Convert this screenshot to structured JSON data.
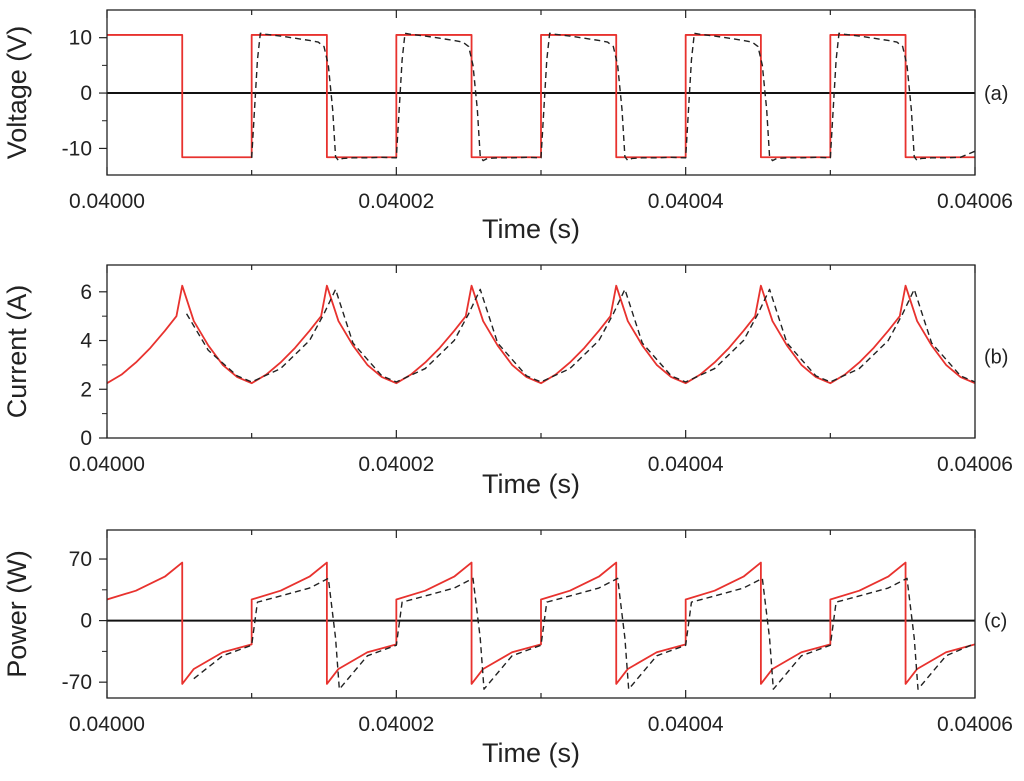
{
  "chart_data": [
    {
      "id": "a",
      "type": "line",
      "panel_label": "(a)",
      "xlabel": "Time (s)",
      "ylabel": "Voltage (V)",
      "xlim": [
        0.04,
        0.04006
      ],
      "ylim": [
        -14.8,
        15
      ],
      "x_ticks": [
        "0.04000",
        "0.04002",
        "0.04004",
        "0.04006"
      ],
      "x_tick_values": [
        0.04,
        0.04002,
        0.04004,
        0.04006
      ],
      "y_ticks": [
        "10",
        "0",
        "-10"
      ],
      "y_tick_values": [
        10,
        0,
        -10
      ],
      "zero_line": true,
      "series": [
        {
          "color": "#e8322e",
          "dash": "solid",
          "x": [
            0.04,
            0.0400052,
            0.0400052,
            0.04001,
            0.04001,
            0.0400152,
            0.0400152,
            0.04002,
            0.04002,
            0.0400252,
            0.0400252,
            0.04003,
            0.04003,
            0.0400352,
            0.0400352,
            0.04004,
            0.04004,
            0.0400452,
            0.0400452,
            0.04005,
            0.04005,
            0.0400552,
            0.0400552,
            0.04006
          ],
          "y": [
            10.5,
            10.5,
            -11.6,
            -11.6,
            10.5,
            10.5,
            -11.6,
            -11.6,
            10.5,
            10.5,
            -11.6,
            -11.6,
            10.5,
            10.5,
            -11.6,
            -11.6,
            10.5,
            10.5,
            -11.6,
            -11.6,
            10.5,
            10.5,
            -11.6,
            -11.6
          ]
        },
        {
          "color": "#222222",
          "dash": "dashed",
          "x": [
            0.04001,
            0.0400104,
            0.0400106,
            0.040011,
            0.040012,
            0.040013,
            0.040014,
            0.0400146,
            0.040015,
            0.0400153,
            0.0400156,
            0.0400158,
            0.040016,
            0.0400163,
            0.040017,
            0.040018,
            0.040019,
            0.04002,
            0.0400204,
            0.0400206,
            0.040021,
            0.040022,
            0.040023,
            0.040024,
            0.0400246,
            0.040025,
            0.0400253,
            0.0400256,
            0.0400258,
            0.040026,
            0.0400263,
            0.040027,
            0.040028,
            0.040029,
            0.04003,
            0.0400304,
            0.0400306,
            0.040031,
            0.040032,
            0.040033,
            0.040034,
            0.0400346,
            0.040035,
            0.0400353,
            0.0400356,
            0.0400358,
            0.040036,
            0.0400363,
            0.040037,
            0.040038,
            0.040039,
            0.04004,
            0.0400404,
            0.0400406,
            0.040041,
            0.040042,
            0.040043,
            0.040044,
            0.0400446,
            0.040045,
            0.0400453,
            0.0400456,
            0.0400458,
            0.040046,
            0.0400463,
            0.040047,
            0.040048,
            0.040049,
            0.04005,
            0.0400504,
            0.0400506,
            0.040051,
            0.040052,
            0.040053,
            0.040054,
            0.0400546,
            0.040055,
            0.0400553,
            0.0400556,
            0.0400558,
            0.040056,
            0.0400563,
            0.040057,
            0.040058,
            0.040059,
            0.04006
          ],
          "y": [
            -11.7,
            6,
            10.8,
            10.6,
            10.3,
            9.9,
            9.5,
            9.2,
            8.4,
            5,
            -3,
            -11.5,
            -12.2,
            -11.8,
            -11.7,
            -11.7,
            -11.6,
            -11.7,
            6,
            10.8,
            10.6,
            10.3,
            9.9,
            9.5,
            9.2,
            8.4,
            5,
            -3,
            -11.5,
            -12.2,
            -11.8,
            -11.7,
            -11.7,
            -11.6,
            -11.7,
            6,
            10.8,
            10.6,
            10.3,
            9.9,
            9.5,
            9.2,
            8.4,
            5,
            -3,
            -11.5,
            -12.2,
            -11.8,
            -11.7,
            -11.7,
            -11.6,
            -11.7,
            6,
            10.8,
            10.6,
            10.3,
            9.9,
            9.5,
            9.2,
            8.4,
            5,
            -3,
            -11.5,
            -12.2,
            -11.8,
            -11.7,
            -11.7,
            -11.6,
            -11.7,
            6,
            10.8,
            10.6,
            10.3,
            9.9,
            9.5,
            9.2,
            8.4,
            5,
            -3,
            -11.5,
            -12.2,
            -11.8,
            -11.7,
            -11.7,
            -11.6,
            -10.5
          ]
        }
      ]
    },
    {
      "id": "b",
      "type": "line",
      "panel_label": "(b)",
      "xlabel": "Time (s)",
      "ylabel": "Current (A)",
      "xlim": [
        0.04,
        0.04006
      ],
      "ylim": [
        0,
        7.1
      ],
      "x_ticks": [
        "0.04000",
        "0.04002",
        "0.04004",
        "0.04006"
      ],
      "x_tick_values": [
        0.04,
        0.04002,
        0.04004,
        0.04006
      ],
      "y_ticks": [
        "6",
        "4",
        "2",
        "0"
      ],
      "y_tick_values": [
        6,
        4,
        2,
        0
      ],
      "zero_line": false,
      "series": [
        {
          "color": "#e8322e",
          "dash": "solid",
          "x": [
            0.04,
            0.040001,
            0.040002,
            0.040003,
            0.040004,
            0.0400048,
            0.0400052,
            0.040006,
            0.040007,
            0.040008,
            0.040009,
            0.04001,
            0.040011,
            0.040012,
            0.040013,
            0.040014,
            0.0400148,
            0.0400152,
            0.040016,
            0.040017,
            0.040018,
            0.040019,
            0.04002,
            0.040021,
            0.040022,
            0.040023,
            0.040024,
            0.0400248,
            0.0400252,
            0.040026,
            0.040027,
            0.040028,
            0.040029,
            0.04003,
            0.040031,
            0.040032,
            0.040033,
            0.040034,
            0.0400348,
            0.0400352,
            0.040036,
            0.040037,
            0.040038,
            0.040039,
            0.04004,
            0.040041,
            0.040042,
            0.040043,
            0.040044,
            0.0400448,
            0.0400452,
            0.040046,
            0.040047,
            0.040048,
            0.040049,
            0.04005,
            0.040051,
            0.040052,
            0.040053,
            0.040054,
            0.0400548,
            0.0400552,
            0.040056,
            0.040057,
            0.040058,
            0.040059,
            0.04006
          ],
          "y": [
            2.25,
            2.6,
            3.1,
            3.7,
            4.4,
            5.0,
            6.25,
            4.8,
            3.8,
            3.0,
            2.5,
            2.25,
            2.6,
            3.1,
            3.7,
            4.4,
            5.0,
            6.25,
            4.8,
            3.8,
            3.0,
            2.5,
            2.25,
            2.6,
            3.1,
            3.7,
            4.4,
            5.0,
            6.25,
            4.8,
            3.8,
            3.0,
            2.5,
            2.25,
            2.6,
            3.1,
            3.7,
            4.4,
            5.0,
            6.25,
            4.8,
            3.8,
            3.0,
            2.5,
            2.25,
            2.6,
            3.1,
            3.7,
            4.4,
            5.0,
            6.25,
            4.8,
            3.8,
            3.0,
            2.5,
            2.25,
            2.6,
            3.1,
            3.7,
            4.4,
            5.0,
            6.25,
            4.8,
            3.8,
            3.0,
            2.5,
            2.25
          ]
        },
        {
          "color": "#222222",
          "dash": "dashed",
          "x": [
            0.0400055,
            0.040007,
            0.040009,
            0.04001,
            0.040012,
            0.040014,
            0.040015,
            0.0400158,
            0.040017,
            0.040019,
            0.04002,
            0.040022,
            0.040024,
            0.040025,
            0.0400258,
            0.040027,
            0.040029,
            0.04003,
            0.040032,
            0.040034,
            0.040035,
            0.0400358,
            0.040037,
            0.040039,
            0.04004,
            0.040042,
            0.040044,
            0.040045,
            0.0400458,
            0.040047,
            0.040049,
            0.04005,
            0.040052,
            0.040054,
            0.040055,
            0.0400558,
            0.040057,
            0.040059,
            0.04006
          ],
          "y": [
            5.1,
            3.6,
            2.55,
            2.3,
            2.85,
            4.0,
            5.1,
            6.1,
            3.9,
            2.55,
            2.3,
            2.85,
            4.0,
            5.1,
            6.1,
            3.9,
            2.55,
            2.3,
            2.85,
            4.0,
            5.1,
            6.1,
            3.9,
            2.55,
            2.3,
            2.85,
            4.0,
            5.1,
            6.1,
            3.9,
            2.55,
            2.3,
            2.85,
            4.0,
            5.1,
            6.1,
            3.9,
            2.55,
            2.3
          ]
        }
      ]
    },
    {
      "id": "c",
      "type": "line",
      "panel_label": "(c)",
      "xlabel": "Time (s)",
      "ylabel": "Power (W)",
      "xlim": [
        0.04,
        0.04006
      ],
      "ylim": [
        -88,
        103
      ],
      "x_ticks": [
        "0.04000",
        "0.04002",
        "0.04004",
        "0.04006"
      ],
      "x_tick_values": [
        0.04,
        0.04002,
        0.04004,
        0.04006
      ],
      "y_ticks": [
        "70",
        "0",
        "-70"
      ],
      "y_tick_values": [
        70,
        0,
        -70
      ],
      "zero_line": true,
      "series": [
        {
          "color": "#e8322e",
          "dash": "solid",
          "x": [
            0.04,
            0.040002,
            0.040004,
            0.0400052,
            0.0400052,
            0.040006,
            0.040008,
            0.04001,
            0.04001,
            0.040012,
            0.040014,
            0.0400152,
            0.0400152,
            0.040016,
            0.040018,
            0.04002,
            0.04002,
            0.040022,
            0.040024,
            0.0400252,
            0.0400252,
            0.040026,
            0.040028,
            0.04003,
            0.04003,
            0.040032,
            0.040034,
            0.0400352,
            0.0400352,
            0.040036,
            0.040038,
            0.04004,
            0.04004,
            0.040042,
            0.040044,
            0.0400452,
            0.0400452,
            0.040046,
            0.040048,
            0.04005,
            0.04005,
            0.040052,
            0.040054,
            0.0400552,
            0.0400552,
            0.040056,
            0.040058,
            0.04006
          ],
          "y": [
            24,
            34,
            50,
            66,
            -72,
            -55,
            -36,
            -27,
            24,
            34,
            50,
            66,
            -72,
            -55,
            -36,
            -27,
            24,
            34,
            50,
            66,
            -72,
            -55,
            -36,
            -27,
            24,
            34,
            50,
            66,
            -72,
            -55,
            -36,
            -27,
            24,
            34,
            50,
            66,
            -72,
            -55,
            -36,
            -27,
            24,
            34,
            50,
            66,
            -72,
            -55,
            -36,
            -27
          ]
        },
        {
          "color": "#222222",
          "dash": "dashed",
          "x": [
            0.040006,
            0.040008,
            0.04001,
            0.0400104,
            0.040012,
            0.040014,
            0.0400153,
            0.0400158,
            0.04001606,
            0.040018,
            0.04002,
            0.0400204,
            0.040022,
            0.040024,
            0.0400253,
            0.0400258,
            0.04002606,
            0.040028,
            0.04003,
            0.0400304,
            0.040032,
            0.040034,
            0.0400353,
            0.0400358,
            0.04003606,
            0.040038,
            0.04004,
            0.0400404,
            0.040042,
            0.040044,
            0.0400453,
            0.0400458,
            0.04004606,
            0.040048,
            0.04005,
            0.0400504,
            0.040052,
            0.040054,
            0.0400553,
            0.0400558,
            0.04005606,
            0.040058,
            0.04006
          ],
          "y": [
            -66,
            -40,
            -28,
            21,
            28,
            37,
            48,
            -20,
            -78,
            -40,
            -28,
            21,
            28,
            37,
            48,
            -20,
            -78,
            -40,
            -28,
            21,
            28,
            37,
            48,
            -20,
            -78,
            -40,
            -28,
            21,
            28,
            37,
            48,
            -20,
            -78,
            -40,
            -28,
            21,
            28,
            37,
            48,
            -20,
            -78,
            -40,
            -26
          ]
        }
      ]
    }
  ]
}
